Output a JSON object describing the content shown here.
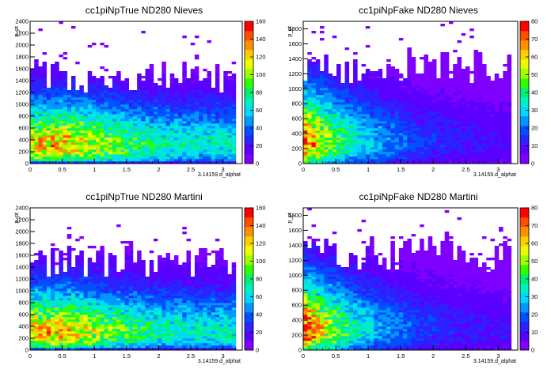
{
  "chart_data": [
    {
      "type": "heatmap",
      "title": "cc1piNpTrue ND280 Nieves",
      "xlabel": "3.14159.d_alphat",
      "ylabel": "p_pt",
      "xlim": [
        0,
        3.3
      ],
      "ylim": [
        0,
        2400
      ],
      "xticks": [
        "0",
        "0.5",
        "1",
        "1.5",
        "2",
        "2.5",
        "3"
      ],
      "yticks": [
        "0",
        "200",
        "400",
        "600",
        "800",
        "1000",
        "1200",
        "1400",
        "1600",
        "1800",
        "2000",
        "2200",
        "2400"
      ],
      "colorbar": {
        "range": [
          0,
          160
        ],
        "ticks": [
          "0",
          "20",
          "40",
          "60",
          "80",
          "100",
          "120",
          "140",
          "160"
        ]
      },
      "distribution": {
        "peak_x": 0.35,
        "peak_y": 270,
        "peak_value": 150,
        "x_falloff": 2.2,
        "y_scale": 300,
        "tail_reach": 1600
      }
    },
    {
      "type": "heatmap",
      "title": "cc1piNpFake ND280 Nieves",
      "xlabel": "3.14159.d_alphat",
      "ylabel": "p_pt",
      "xlim": [
        0,
        3.3
      ],
      "ylim": [
        0,
        1900
      ],
      "xticks": [
        "0",
        "0.5",
        "1",
        "1.5",
        "2",
        "2.5",
        "3"
      ],
      "yticks": [
        "0",
        "200",
        "400",
        "600",
        "800",
        "1000",
        "1200",
        "1400",
        "1600",
        "1800"
      ],
      "colorbar": {
        "range": [
          0,
          80
        ],
        "ticks": [
          "0",
          "10",
          "20",
          "30",
          "40",
          "50",
          "60",
          "70",
          "80"
        ]
      },
      "distribution": {
        "peak_x": 0.2,
        "peak_y": 240,
        "peak_value": 75,
        "x_falloff": 0.9,
        "y_scale": 280,
        "tail_reach": 1400
      }
    },
    {
      "type": "heatmap",
      "title": "cc1piNpTrue ND280 Martini",
      "xlabel": "3.14159.d_alphat",
      "ylabel": "p_pt",
      "xlim": [
        0,
        3.3
      ],
      "ylim": [
        0,
        2400
      ],
      "xticks": [
        "0",
        "0.5",
        "1",
        "1.5",
        "2",
        "2.5",
        "3"
      ],
      "yticks": [
        "0",
        "200",
        "400",
        "600",
        "800",
        "1000",
        "1200",
        "1400",
        "1600",
        "1800",
        "2000",
        "2200",
        "2400"
      ],
      "colorbar": {
        "range": [
          0,
          160
        ],
        "ticks": [
          "0",
          "20",
          "40",
          "60",
          "80",
          "100",
          "120",
          "140",
          "160"
        ]
      },
      "distribution": {
        "peak_x": 0.3,
        "peak_y": 260,
        "peak_value": 150,
        "x_falloff": 2.2,
        "y_scale": 300,
        "tail_reach": 1600
      }
    },
    {
      "type": "heatmap",
      "title": "cc1piNpFake ND280 Martini",
      "xlabel": "3.14159.d_alphat",
      "ylabel": "p_pt",
      "xlim": [
        0,
        3.3
      ],
      "ylim": [
        0,
        1900
      ],
      "xticks": [
        "0",
        "0.5",
        "1",
        "1.5",
        "2",
        "2.5",
        "3"
      ],
      "yticks": [
        "0",
        "200",
        "400",
        "600",
        "800",
        "1000",
        "1200",
        "1400",
        "1600",
        "1800"
      ],
      "colorbar": {
        "range": [
          0,
          80
        ],
        "ticks": [
          "0",
          "10",
          "20",
          "30",
          "40",
          "50",
          "60",
          "70",
          "80"
        ]
      },
      "distribution": {
        "peak_x": 0.2,
        "peak_y": 230,
        "peak_value": 78,
        "x_falloff": 0.9,
        "y_scale": 280,
        "tail_reach": 1400
      }
    }
  ],
  "palette": [
    "#ffffff",
    "#7f00ff",
    "#5a00ff",
    "#2a22ff",
    "#0050ff",
    "#0098ff",
    "#00d8ff",
    "#00f0c0",
    "#00f070",
    "#30ff00",
    "#a0ff00",
    "#e8ff00",
    "#ffd000",
    "#ff9000",
    "#ff5000",
    "#ff0000"
  ]
}
